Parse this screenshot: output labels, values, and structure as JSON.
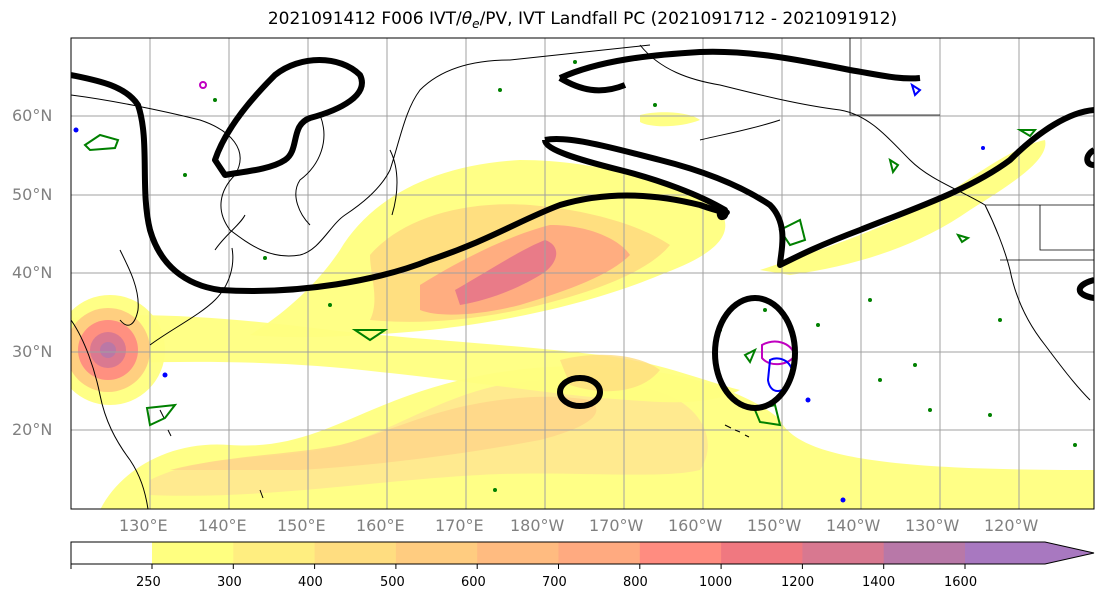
{
  "title_parts": {
    "prefix": "2021091412 F006 IVT/",
    "theta": "θ",
    "theta_sub": "e",
    "suffix": "/PV, IVT Landfall PC (2021091712 - 2021091912)"
  },
  "lat_labels": [
    "60°N",
    "50°N",
    "40°N",
    "30°N",
    "20°N"
  ],
  "lon_labels": [
    "130°E",
    "140°E",
    "150°E",
    "160°E",
    "170°E",
    "180°W",
    "170°W",
    "160°W",
    "150°W",
    "140°W",
    "130°W",
    "120°W"
  ],
  "colorbar": {
    "ticks": [
      "250",
      "300",
      "400",
      "500",
      "600",
      "700",
      "800",
      "1000",
      "1200",
      "1400",
      "1600"
    ],
    "colors": [
      "#ffff80",
      "#ffee80",
      "#ffdd80",
      "#ffcc80",
      "#ffbb80",
      "#ffaa80",
      "#ff8c80",
      "#f07880",
      "#d87890",
      "#b878a8",
      "#a878c0"
    ],
    "extend": "max"
  },
  "legend_colors": {
    "ivt_contour": "#000000",
    "theta_e": "#008000",
    "pv_blue": "#0000ff",
    "pv_magenta": "#c000c0",
    "grid": "#a0a0a0"
  }
}
